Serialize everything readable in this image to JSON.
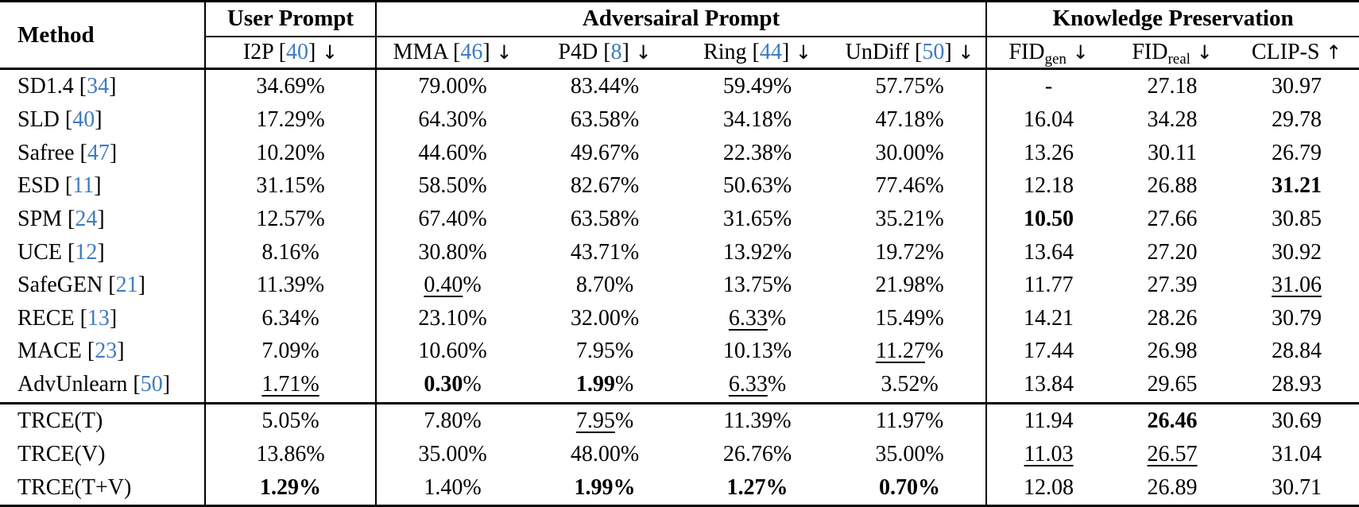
{
  "styles": {
    "citation_color": "#3E7CBF",
    "text_color": "#000000",
    "background": "#ffffff",
    "rule_color": "#000000"
  },
  "table": {
    "top_header": {
      "method_label": "Method",
      "groups": [
        {
          "label": "User Prompt",
          "span": 1
        },
        {
          "label": "Adversairal Prompt",
          "span": 4
        },
        {
          "label": "Knowledge Preservation",
          "span": 3
        }
      ]
    },
    "columns": [
      {
        "key": "i2p",
        "title": "I2P",
        "cite": "40",
        "arrow": "↓"
      },
      {
        "key": "mma",
        "title": "MMA",
        "cite": "46",
        "arrow": "↓"
      },
      {
        "key": "p4d",
        "title": "P4D",
        "cite": "8",
        "arrow": "↓"
      },
      {
        "key": "ring",
        "title": "Ring",
        "cite": "44",
        "arrow": "↓"
      },
      {
        "key": "undiff",
        "title": "UnDiff",
        "cite": "50",
        "arrow": "↓"
      },
      {
        "key": "fid-gen",
        "title": "FID",
        "subscript": "gen",
        "arrow": "↓"
      },
      {
        "key": "fid-real",
        "title": "FID",
        "subscript": "real",
        "arrow": "↓"
      },
      {
        "key": "clip-s",
        "title": "CLIP-S",
        "arrow": "↑"
      }
    ],
    "sections": [
      {
        "rows": [
          {
            "method": "SD1.4",
            "cite": "34",
            "cells": [
              "34.69%",
              "79.00%",
              "83.44%",
              "59.49%",
              "57.75%",
              "-",
              "27.18",
              "30.97"
            ]
          },
          {
            "method": "SLD",
            "cite": "40",
            "cells": [
              "17.29%",
              "64.30%",
              "63.58%",
              "34.18%",
              "47.18%",
              "16.04",
              "34.28",
              "29.78"
            ]
          },
          {
            "method": "Safree",
            "cite": "47",
            "cells": [
              "10.20%",
              "44.60%",
              "49.67%",
              "22.38%",
              "30.00%",
              "13.26",
              "30.11",
              "26.79"
            ]
          },
          {
            "method": "ESD",
            "cite": "11",
            "cells": [
              "31.15%",
              "58.50%",
              "82.67%",
              "50.63%",
              "77.46%",
              "12.18",
              "26.88",
              [
                [
                  "31.21",
                  "b"
                ]
              ]
            ]
          },
          {
            "method": "SPM",
            "cite": "24",
            "cells": [
              "12.57%",
              "67.40%",
              "63.58%",
              "31.65%",
              "35.21%",
              [
                [
                  "10.50",
                  "b"
                ]
              ],
              "27.66",
              "30.85"
            ]
          },
          {
            "method": "UCE",
            "cite": "12",
            "cells": [
              "8.16%",
              "30.80%",
              "43.71%",
              "13.92%",
              "19.72%",
              "13.64",
              "27.20",
              "30.92"
            ]
          },
          {
            "method": "SafeGEN",
            "cite": "21",
            "cells": [
              "11.39%",
              [
                [
                  "0.40",
                  "u"
                ],
                [
                  "%",
                  ""
                ]
              ],
              "8.70%",
              "13.75%",
              "21.98%",
              "11.77",
              "27.39",
              [
                [
                  "31.06",
                  "u"
                ]
              ]
            ]
          },
          {
            "method": "RECE",
            "cite": "13",
            "cells": [
              "6.34%",
              "23.10%",
              "32.00%",
              [
                [
                  "6.33",
                  "u"
                ],
                [
                  "%",
                  ""
                ]
              ],
              "15.49%",
              "14.21",
              "28.26",
              "30.79"
            ]
          },
          {
            "method": "MACE",
            "cite": "23",
            "cells": [
              "7.09%",
              "10.60%",
              "7.95%",
              "10.13%",
              [
                [
                  "11.27",
                  "u"
                ],
                [
                  "%",
                  ""
                ]
              ],
              "17.44",
              "26.98",
              "28.84"
            ]
          },
          {
            "method": "AdvUnlearn",
            "cite": "50",
            "cells": [
              [
                [
                  "1.71%",
                  "u"
                ]
              ],
              [
                [
                  "0.30",
                  "b"
                ],
                [
                  "%",
                  ""
                ]
              ],
              [
                [
                  "1.99",
                  "b"
                ],
                [
                  "%",
                  ""
                ]
              ],
              [
                [
                  "6.33",
                  "u"
                ],
                [
                  "%",
                  ""
                ]
              ],
              "3.52%",
              "13.84",
              "29.65",
              "28.93"
            ]
          }
        ]
      },
      {
        "rows": [
          {
            "method": "TRCE(T)",
            "cite": "",
            "cells": [
              "5.05%",
              "7.80%",
              [
                [
                  "7.95",
                  "u"
                ],
                [
                  "%",
                  ""
                ]
              ],
              "11.39%",
              "11.97%",
              "11.94",
              [
                [
                  "26.46",
                  "b"
                ]
              ],
              "30.69"
            ]
          },
          {
            "method": "TRCE(V)",
            "cite": "",
            "cells": [
              "13.86%",
              "35.00%",
              "48.00%",
              "26.76%",
              "35.00%",
              [
                [
                  "11.03",
                  "u"
                ]
              ],
              [
                [
                  "26.57",
                  "u"
                ]
              ],
              "31.04"
            ]
          },
          {
            "method": "TRCE(T+V)",
            "cite": "",
            "cells": [
              [
                [
                  "1.29%",
                  "b"
                ]
              ],
              "1.40%",
              [
                [
                  "1.99%",
                  "b"
                ]
              ],
              [
                [
                  "1.27%",
                  "b"
                ]
              ],
              [
                [
                  "0.70%",
                  "b"
                ]
              ],
              "12.08",
              "26.89",
              "30.71"
            ]
          }
        ]
      }
    ]
  }
}
